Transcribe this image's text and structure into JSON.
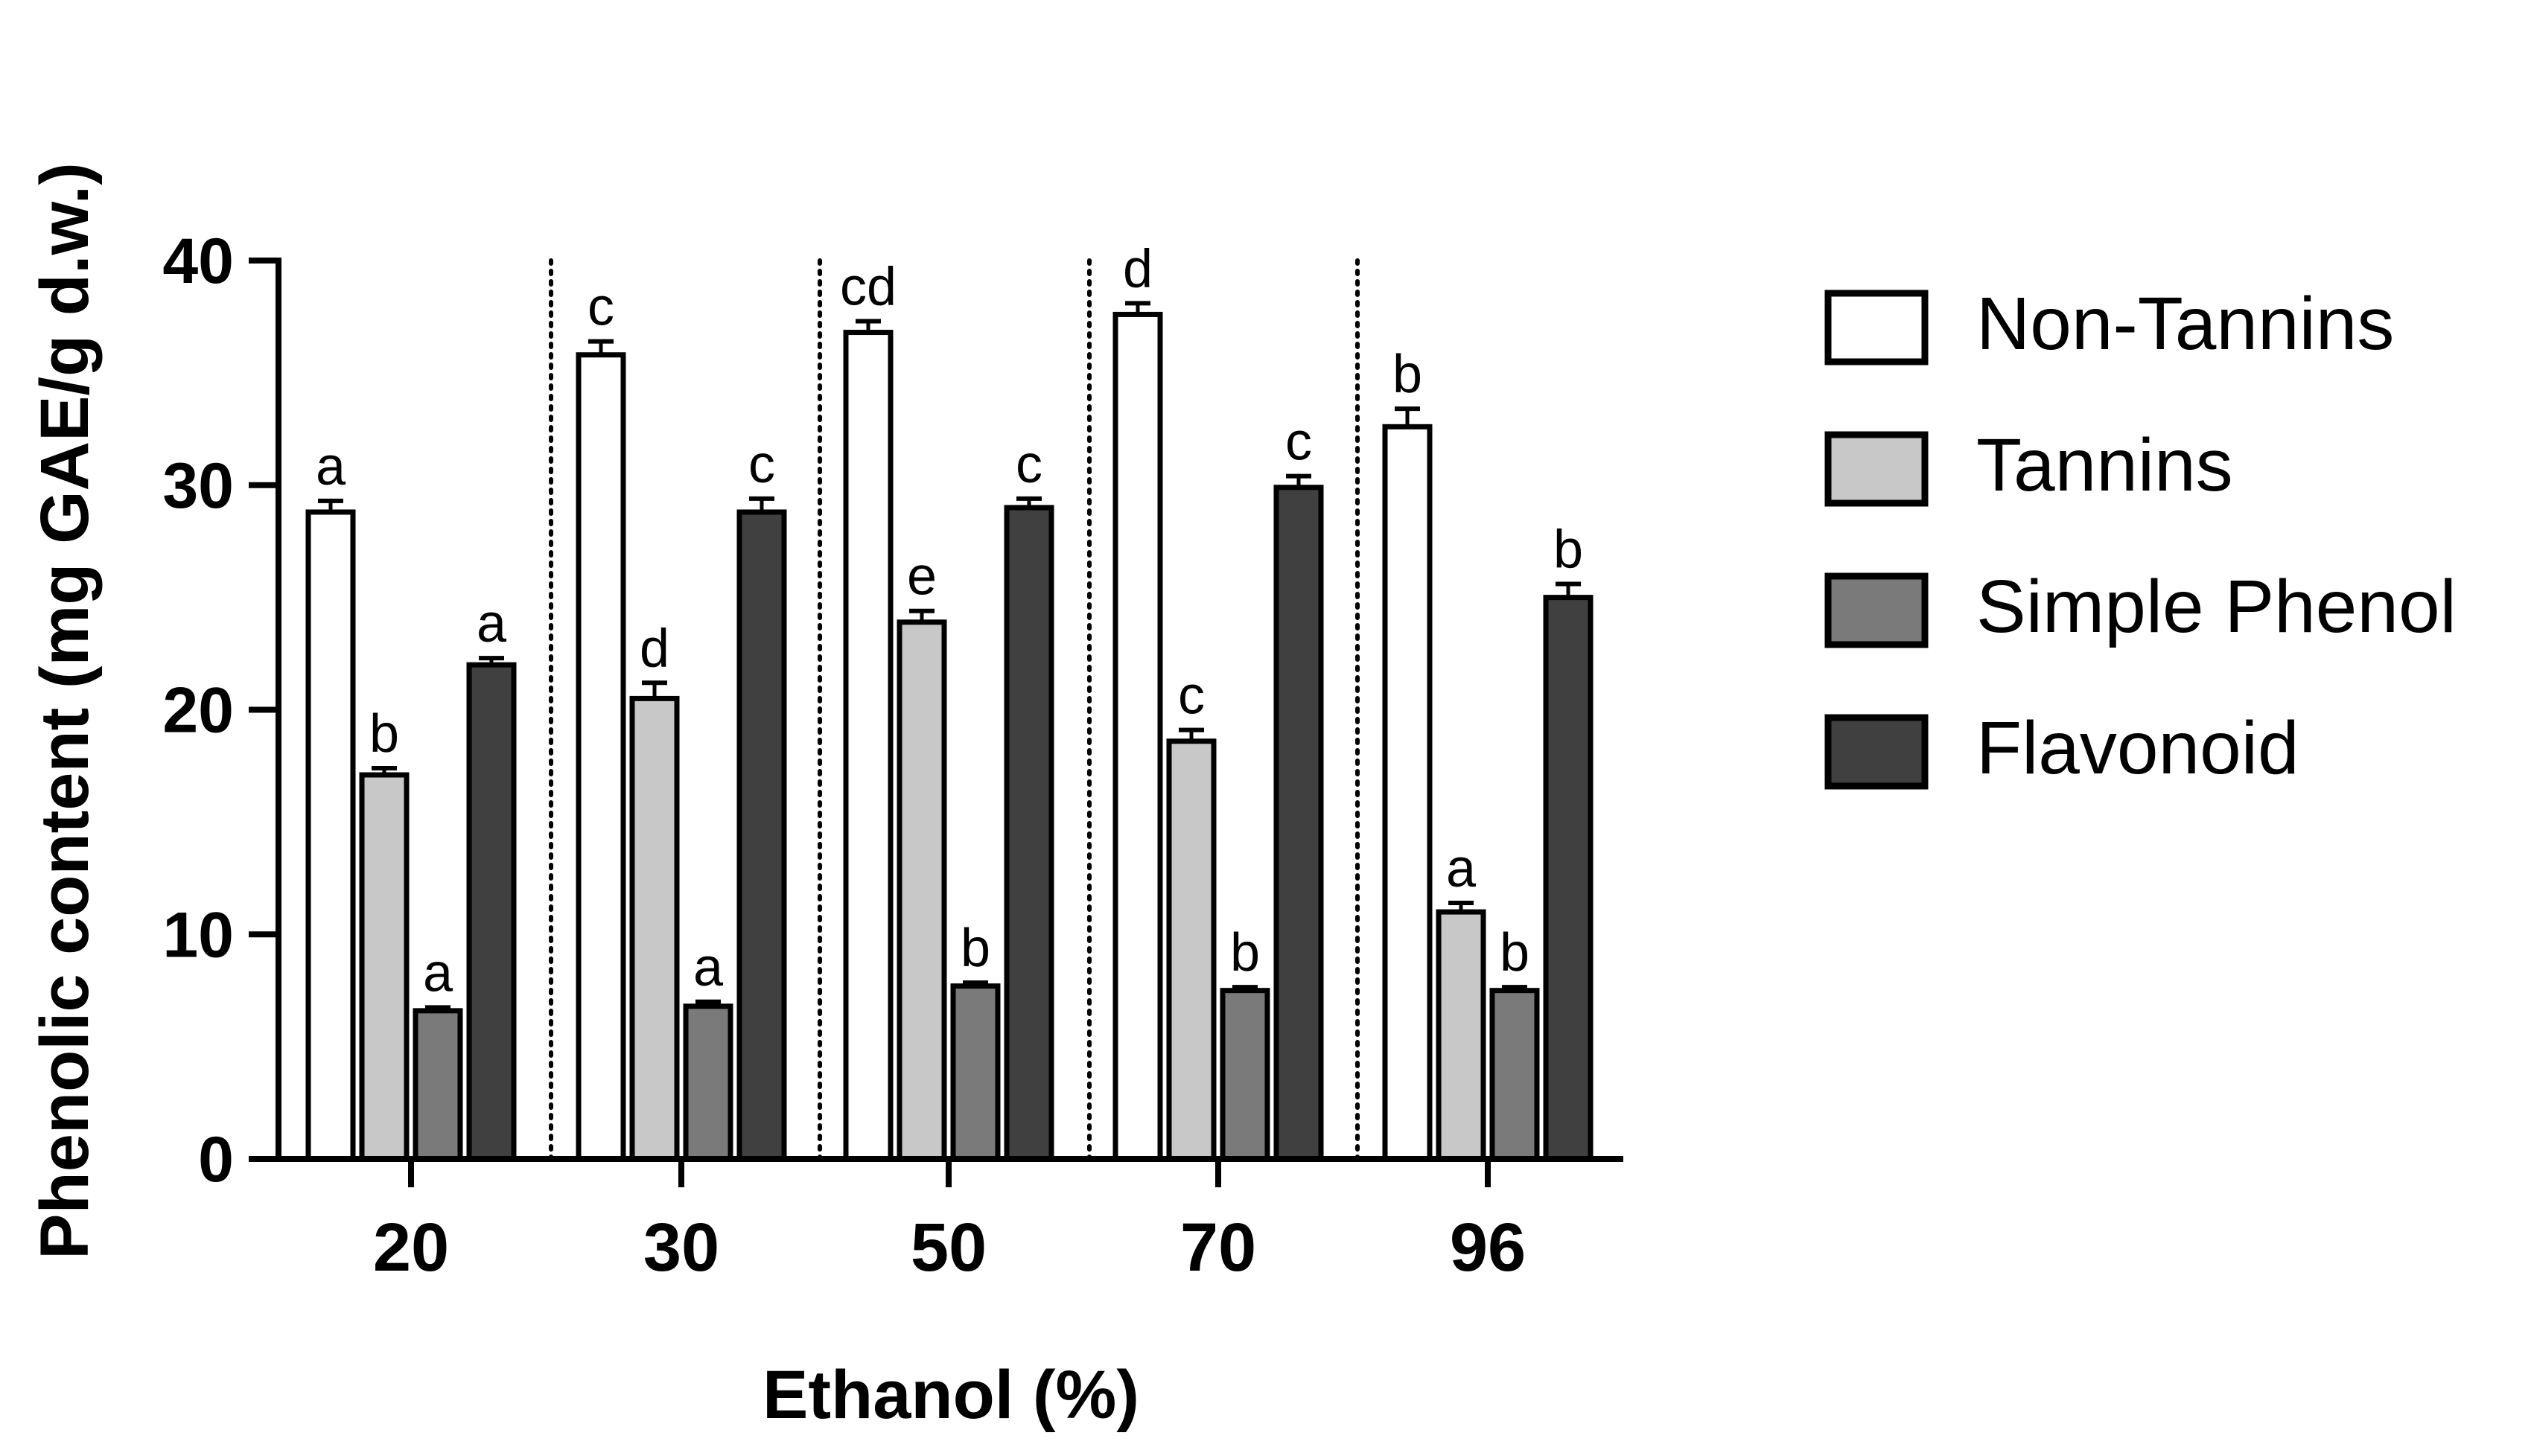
{
  "chart_data": {
    "type": "bar",
    "title": "",
    "xlabel": "Ethanol (%)",
    "ylabel": "Phenolic content (mg GAE/g d.w.)",
    "ylim": [
      0,
      40
    ],
    "yticks": [
      0,
      10,
      20,
      30,
      40
    ],
    "categories": [
      "20",
      "30",
      "50",
      "70",
      "96"
    ],
    "grid": false,
    "legend_position": "right",
    "group_separators": "dotted vertical lines between groups",
    "series": [
      {
        "name": "Non-Tannins",
        "color": "#ffffff",
        "values": [
          28.8,
          35.8,
          36.8,
          37.6,
          32.6
        ],
        "errors": [
          0.5,
          0.6,
          0.5,
          0.5,
          0.8
        ],
        "letters": [
          "a",
          "c",
          "cd",
          "d",
          "b"
        ]
      },
      {
        "name": "Tannins",
        "color": "#c8c8c8",
        "values": [
          17.1,
          20.5,
          23.9,
          18.6,
          11.0
        ],
        "errors": [
          0.3,
          0.7,
          0.5,
          0.5,
          0.4
        ],
        "letters": [
          "b",
          "d",
          "e",
          "c",
          "a"
        ]
      },
      {
        "name": "Simple Phenol",
        "color": "#7a7a7a",
        "values": [
          6.6,
          6.8,
          7.7,
          7.5,
          7.5
        ],
        "errors": [
          0.15,
          0.2,
          0.15,
          0.15,
          0.15
        ],
        "letters": [
          "a",
          "a",
          "b",
          "b",
          "b"
        ]
      },
      {
        "name": "Flavonoid",
        "color": "#404040",
        "values": [
          22.0,
          28.8,
          29.0,
          29.9,
          25.0
        ],
        "errors": [
          0.3,
          0.6,
          0.4,
          0.5,
          0.6
        ],
        "letters": [
          "a",
          "c",
          "c",
          "c",
          "b"
        ]
      }
    ]
  }
}
